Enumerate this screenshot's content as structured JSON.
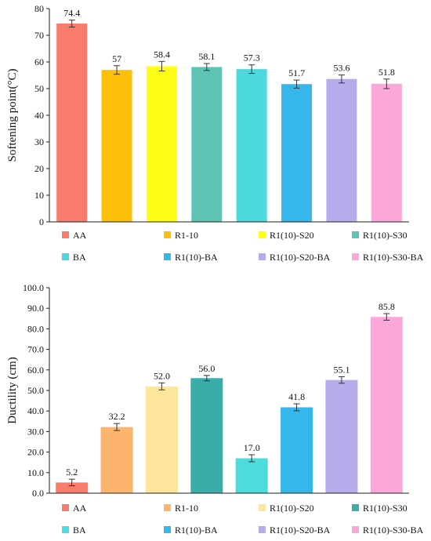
{
  "chart_data": [
    {
      "type": "bar",
      "ylabel": "Softening point(°C)",
      "xlabel": "",
      "ylim": [
        0,
        80
      ],
      "yticks": [
        0,
        10,
        20,
        30,
        40,
        50,
        60,
        70,
        80
      ],
      "ytick_labels": [
        "0",
        "10",
        "20",
        "30",
        "40",
        "50",
        "60",
        "70",
        "80"
      ],
      "grid": false,
      "legend_position": "bottom",
      "categories": [
        "AA",
        "R1-10",
        "R1(10)-S20",
        "R1(10)-S30",
        "BA",
        "R1(10)-BA",
        "R1(10)-S20-BA",
        "R1(10)-S30-BA"
      ],
      "values": [
        74.4,
        57,
        58.4,
        58.1,
        57.3,
        51.7,
        53.6,
        51.8
      ],
      "value_labels": [
        "74.4",
        "57",
        "58.4",
        "58.1",
        "57.3",
        "51.7",
        "53.6",
        "51.8"
      ],
      "errors": [
        1.3,
        1.6,
        1.8,
        1.3,
        1.6,
        1.5,
        1.5,
        1.8
      ],
      "colors": [
        "#f87c6c",
        "#fdbf0a",
        "#fdfd16",
        "#5dc4b4",
        "#4cd8dc",
        "#35b7ec",
        "#b8abec",
        "#fba8d8"
      ]
    },
    {
      "type": "bar",
      "ylabel": "Ductility (cm)",
      "xlabel": "",
      "ylim": [
        0,
        100
      ],
      "yticks": [
        0,
        10,
        20,
        30,
        40,
        50,
        60,
        70,
        80,
        90,
        100
      ],
      "ytick_labels": [
        "0.0",
        "10.0",
        "20.0",
        "30.0",
        "40.0",
        "50.0",
        "60.0",
        "70.0",
        "80.0",
        "90.0",
        "100.0"
      ],
      "grid": false,
      "legend_position": "bottom",
      "categories": [
        "AA",
        "R1-10",
        "R1(10)-S20",
        "R1(10)-S30",
        "BA",
        "R1(10)-BA",
        "R1(10)-S20-BA",
        "R1(10)-S30-BA"
      ],
      "values": [
        5.2,
        32.2,
        52.0,
        56.0,
        17.0,
        41.8,
        55.1,
        85.8
      ],
      "value_labels": [
        "5.2",
        "32.2",
        "52.0",
        "56.0",
        "17.0",
        "41.8",
        "55.1",
        "85.8"
      ],
      "errors": [
        1.6,
        1.7,
        1.7,
        1.3,
        1.7,
        1.7,
        1.6,
        1.6
      ],
      "colors": [
        "#f87c6c",
        "#fdb46c",
        "#fde69c",
        "#3aada9",
        "#4cdcdc",
        "#35b7ec",
        "#b8abec",
        "#fba8d8"
      ]
    }
  ]
}
